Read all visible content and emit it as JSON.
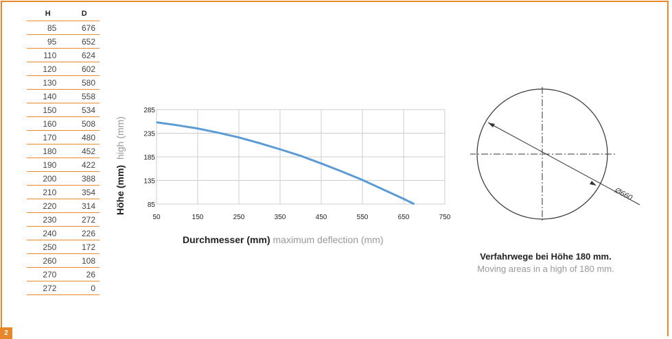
{
  "page_number": "2",
  "table": {
    "headers": [
      "H",
      "D"
    ],
    "rows": [
      [
        "85",
        "676"
      ],
      [
        "95",
        "652"
      ],
      [
        "110",
        "624"
      ],
      [
        "120",
        "602"
      ],
      [
        "130",
        "580"
      ],
      [
        "140",
        "558"
      ],
      [
        "150",
        "534"
      ],
      [
        "160",
        "508"
      ],
      [
        "170",
        "480"
      ],
      [
        "180",
        "452"
      ],
      [
        "190",
        "422"
      ],
      [
        "200",
        "388"
      ],
      [
        "210",
        "354"
      ],
      [
        "220",
        "314"
      ],
      [
        "230",
        "272"
      ],
      [
        "240",
        "226"
      ],
      [
        "250",
        "172"
      ],
      [
        "260",
        "108"
      ],
      [
        "270",
        "26"
      ],
      [
        "272",
        "0"
      ]
    ]
  },
  "chart_data": {
    "type": "line",
    "ylabel_de": "Höhe (mm)",
    "ylabel_en": "high (mm)",
    "xlabel_de": "Durchmesser (mm)",
    "xlabel_en": "maximum deflection (mm)",
    "xlim": [
      50,
      750
    ],
    "ylim": [
      85,
      285
    ],
    "x_ticks": [
      "50",
      "150",
      "250",
      "350",
      "450",
      "550",
      "650",
      "750"
    ],
    "y_ticks": [
      "285",
      "235",
      "185",
      "135",
      "85"
    ],
    "grid": true,
    "line_color": "#5b9bd5",
    "series": [
      {
        "x": [
          50,
          100,
          150,
          200,
          250,
          300,
          350,
          400,
          450,
          500,
          550,
          600,
          650,
          676
        ],
        "y": [
          258,
          252,
          245,
          236,
          226,
          214,
          201,
          187,
          171,
          154,
          136,
          116,
          96,
          85
        ]
      }
    ]
  },
  "circle_diagram": {
    "dimension_label": "Ø660",
    "caption_de": "Verfahrwege bei Höhe 180 mm.",
    "caption_en": "Moving areas in a high of 180 mm."
  },
  "accent_color": "#e8862a"
}
